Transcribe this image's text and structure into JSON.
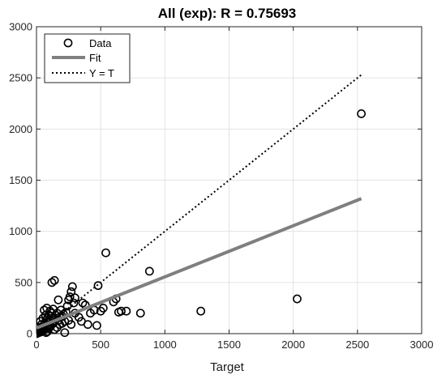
{
  "chart_data": {
    "type": "scatter",
    "title": "All (exp): R = 0.75693",
    "xlabel": "Target",
    "ylabel": "",
    "xlim": [
      0,
      3000
    ],
    "ylim": [
      0,
      3000
    ],
    "xticks": [
      "0",
      "500",
      "1000",
      "1500",
      "2000",
      "2500",
      "3000"
    ],
    "yticks": [
      "0",
      "500",
      "1000",
      "1500",
      "2000",
      "2500",
      "3000"
    ],
    "grid": true,
    "legend_position": "top-left",
    "legend": [
      {
        "label": "Data",
        "style": "circle-marker"
      },
      {
        "label": "Fit",
        "style": "solid-gray-line"
      },
      {
        "label": "Y = T",
        "style": "dotted-black-line"
      }
    ],
    "series": [
      {
        "name": "Data",
        "marker": "circle",
        "color": "#000000",
        "points": [
          [
            0,
            0
          ],
          [
            5,
            10
          ],
          [
            10,
            5
          ],
          [
            15,
            20
          ],
          [
            20,
            10
          ],
          [
            25,
            30
          ],
          [
            30,
            15
          ],
          [
            35,
            40
          ],
          [
            40,
            20
          ],
          [
            45,
            60
          ],
          [
            50,
            30
          ],
          [
            55,
            80
          ],
          [
            60,
            40
          ],
          [
            65,
            100
          ],
          [
            70,
            50
          ],
          [
            75,
            130
          ],
          [
            80,
            60
          ],
          [
            85,
            150
          ],
          [
            90,
            70
          ],
          [
            95,
            180
          ],
          [
            100,
            90
          ],
          [
            105,
            220
          ],
          [
            110,
            120
          ],
          [
            115,
            170
          ],
          [
            120,
            200
          ],
          [
            130,
            240
          ],
          [
            140,
            150
          ],
          [
            150,
            180
          ],
          [
            160,
            200
          ],
          [
            170,
            130
          ],
          [
            180,
            160
          ],
          [
            190,
            230
          ],
          [
            200,
            170
          ],
          [
            210,
            190
          ],
          [
            220,
            120
          ],
          [
            230,
            210
          ],
          [
            240,
            270
          ],
          [
            250,
            330
          ],
          [
            260,
            360
          ],
          [
            270,
            410
          ],
          [
            280,
            460
          ],
          [
            290,
            300
          ],
          [
            300,
            350
          ],
          [
            30,
            120
          ],
          [
            40,
            90
          ],
          [
            50,
            150
          ],
          [
            20,
            60
          ],
          [
            10,
            30
          ],
          [
            60,
            230
          ],
          [
            70,
            180
          ],
          [
            80,
            250
          ],
          [
            90,
            110
          ],
          [
            100,
            60
          ],
          [
            120,
            500
          ],
          [
            140,
            520
          ],
          [
            170,
            330
          ],
          [
            200,
            100
          ],
          [
            220,
            10
          ],
          [
            250,
            130
          ],
          [
            270,
            90
          ],
          [
            300,
            200
          ],
          [
            360,
            300
          ],
          [
            380,
            280
          ],
          [
            400,
            90
          ],
          [
            420,
            200
          ],
          [
            450,
            230
          ],
          [
            470,
            80
          ],
          [
            480,
            470
          ],
          [
            500,
            220
          ],
          [
            520,
            250
          ],
          [
            540,
            790
          ],
          [
            600,
            310
          ],
          [
            620,
            340
          ],
          [
            640,
            210
          ],
          [
            660,
            220
          ],
          [
            700,
            220
          ],
          [
            810,
            200
          ],
          [
            880,
            610
          ],
          [
            1280,
            220
          ],
          [
            2030,
            340
          ],
          [
            2530,
            2150
          ],
          [
            330,
            160
          ],
          [
            350,
            120
          ],
          [
            180,
            90
          ],
          [
            160,
            60
          ],
          [
            140,
            40
          ],
          [
            130,
            100
          ],
          [
            110,
            70
          ],
          [
            95,
            50
          ],
          [
            85,
            20
          ],
          [
            75,
            10
          ]
        ]
      },
      {
        "name": "Fit",
        "type": "line",
        "color": "#7f7f7f",
        "x": [
          0,
          2530
        ],
        "y": [
          55,
          1320
        ]
      },
      {
        "name": "Y = T",
        "type": "line",
        "dash": "dotted",
        "color": "#000000",
        "x": [
          0,
          2530
        ],
        "y": [
          0,
          2530
        ]
      }
    ]
  }
}
